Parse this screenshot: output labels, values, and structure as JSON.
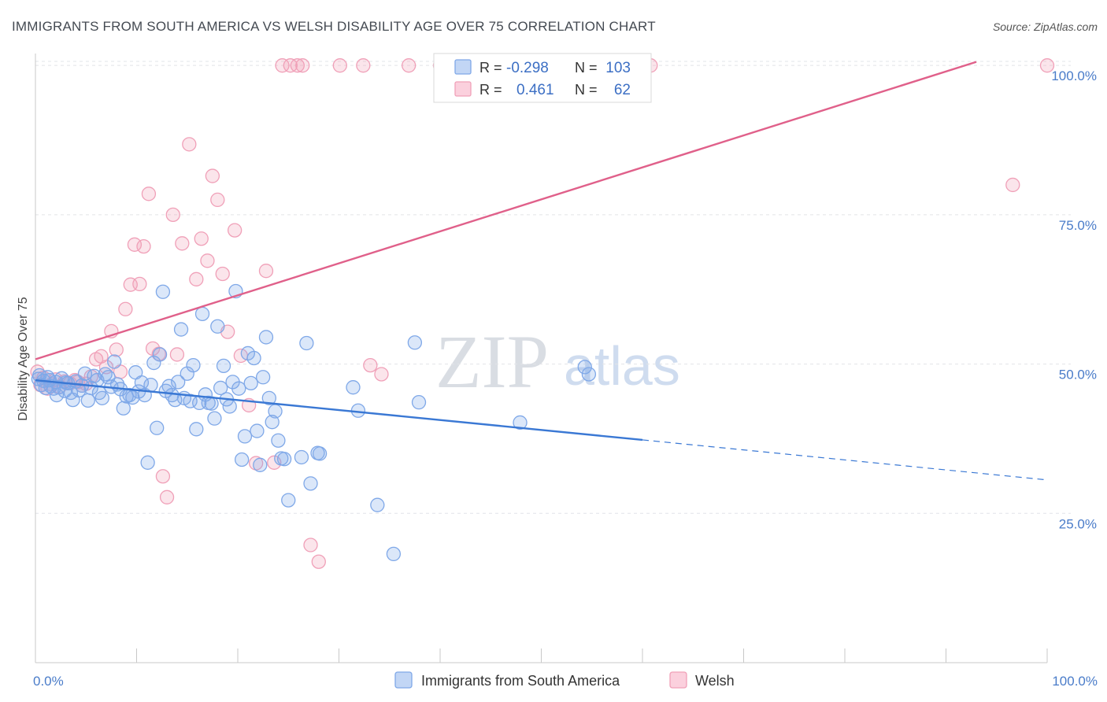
{
  "header": {
    "title": "IMMIGRANTS FROM SOUTH AMERICA VS WELSH DISABILITY AGE OVER 75 CORRELATION CHART",
    "source": "Source: ZipAtlas.com"
  },
  "watermark": {
    "zip": "ZIP",
    "atlas": "atlas"
  },
  "legend_box": {
    "rows": [
      {
        "r_label": "R =",
        "r_value": "-0.298",
        "n_label": "N =",
        "n_value": "103",
        "color": "#7fa8e8"
      },
      {
        "r_label": "R =",
        "r_value": "0.461",
        "n_label": "N =",
        "n_value": "62",
        "color": "#f0a0b8"
      }
    ]
  },
  "bottom_legend": {
    "items": [
      {
        "label": "Immigrants from South America",
        "color": "#7fa8e8"
      },
      {
        "label": "Welsh",
        "color": "#f0a0b8"
      }
    ]
  },
  "chart_data": {
    "type": "scatter",
    "title": "IMMIGRANTS FROM SOUTH AMERICA VS WELSH DISABILITY AGE OVER 75 CORRELATION CHART",
    "xlabel": "",
    "ylabel": "Disability Age Over 75",
    "xlim": [
      0,
      100
    ],
    "ylim": [
      0,
      102
    ],
    "x_tick_labels": [
      {
        "value": 0,
        "label": "0.0%"
      },
      {
        "value": 100,
        "label": "100.0%"
      }
    ],
    "y_tick_labels": [
      {
        "value": 25,
        "label": "25.0%"
      },
      {
        "value": 50,
        "label": "50.0%"
      },
      {
        "value": 75,
        "label": "75.0%"
      },
      {
        "value": 100,
        "label": "100.0%"
      }
    ],
    "grid": true,
    "legend_position": "top-center",
    "series": [
      {
        "name": "Immigrants from South America",
        "color": "#7fa8e8",
        "line_color": "#3a78d4",
        "trend": {
          "x0": 0,
          "y0": 47.3,
          "x1": 60,
          "y1": 37.3,
          "dashed_to_x": 100,
          "dashed_to_y": 30.6
        },
        "points": [
          [
            0.3,
            47.5
          ],
          [
            0.6,
            46.5
          ],
          [
            0.8,
            47.2
          ],
          [
            1.0,
            46.0
          ],
          [
            1.2,
            47.8
          ],
          [
            1.5,
            46.3
          ],
          [
            1.8,
            45.9
          ],
          [
            2.0,
            47.0
          ],
          [
            2.3,
            46.1
          ],
          [
            2.6,
            47.6
          ],
          [
            2.9,
            45.5
          ],
          [
            3.2,
            46.8
          ],
          [
            3.5,
            45.2
          ],
          [
            3.7,
            44.0
          ],
          [
            4.0,
            47.1
          ],
          [
            4.3,
            45.6
          ],
          [
            4.6,
            46.4
          ],
          [
            4.9,
            48.4
          ],
          [
            5.2,
            43.9
          ],
          [
            5.5,
            46.0
          ],
          [
            5.8,
            48.0
          ],
          [
            6.1,
            47.3
          ],
          [
            6.3,
            45.2
          ],
          [
            6.6,
            44.3
          ],
          [
            6.9,
            48.3
          ],
          [
            7.2,
            47.8
          ],
          [
            7.5,
            46.2
          ],
          [
            7.8,
            50.4
          ],
          [
            8.1,
            46.6
          ],
          [
            8.4,
            45.8
          ],
          [
            8.7,
            42.6
          ],
          [
            9.0,
            44.6
          ],
          [
            9.3,
            44.8
          ],
          [
            9.6,
            44.4
          ],
          [
            9.9,
            48.6
          ],
          [
            10.2,
            45.4
          ],
          [
            10.5,
            46.9
          ],
          [
            10.8,
            44.8
          ],
          [
            11.1,
            33.5
          ],
          [
            11.4,
            46.5
          ],
          [
            11.7,
            50.2
          ],
          [
            12.0,
            39.3
          ],
          [
            12.3,
            51.6
          ],
          [
            12.6,
            62.1
          ],
          [
            12.9,
            45.5
          ],
          [
            13.2,
            46.3
          ],
          [
            13.5,
            44.8
          ],
          [
            13.8,
            44.0
          ],
          [
            14.1,
            47.0
          ],
          [
            14.4,
            55.8
          ],
          [
            14.7,
            44.3
          ],
          [
            15.0,
            48.4
          ],
          [
            15.3,
            43.8
          ],
          [
            15.6,
            49.8
          ],
          [
            15.9,
            39.1
          ],
          [
            16.2,
            43.5
          ],
          [
            16.5,
            58.4
          ],
          [
            16.8,
            44.9
          ],
          [
            17.1,
            43.5
          ],
          [
            17.4,
            43.4
          ],
          [
            17.7,
            40.9
          ],
          [
            18.0,
            56.3
          ],
          [
            18.3,
            46.0
          ],
          [
            18.6,
            49.7
          ],
          [
            18.9,
            44.1
          ],
          [
            19.2,
            42.9
          ],
          [
            19.5,
            47.0
          ],
          [
            19.8,
            62.2
          ],
          [
            20.1,
            45.9
          ],
          [
            20.4,
            34.0
          ],
          [
            20.7,
            37.9
          ],
          [
            21.0,
            51.8
          ],
          [
            21.3,
            46.8
          ],
          [
            21.6,
            51.0
          ],
          [
            21.9,
            38.8
          ],
          [
            22.2,
            33.1
          ],
          [
            22.5,
            47.8
          ],
          [
            22.8,
            54.5
          ],
          [
            23.1,
            44.3
          ],
          [
            23.4,
            40.3
          ],
          [
            23.7,
            42.1
          ],
          [
            24.0,
            37.2
          ],
          [
            24.3,
            34.2
          ],
          [
            24.6,
            34.1
          ],
          [
            25.0,
            27.2
          ],
          [
            26.3,
            34.4
          ],
          [
            26.8,
            53.5
          ],
          [
            27.2,
            30.0
          ],
          [
            27.9,
            35.1
          ],
          [
            28.1,
            35.0
          ],
          [
            31.4,
            46.1
          ],
          [
            31.9,
            42.2
          ],
          [
            33.8,
            26.4
          ],
          [
            35.4,
            18.2
          ],
          [
            37.5,
            53.6
          ],
          [
            37.9,
            43.6
          ],
          [
            47.9,
            40.2
          ],
          [
            54.3,
            49.5
          ],
          [
            54.7,
            48.3
          ],
          [
            0.4,
            48.1
          ],
          [
            1.4,
            47.3
          ],
          [
            2.1,
            44.8
          ],
          [
            3.0,
            46.9
          ]
        ]
      },
      {
        "name": "Welsh",
        "color": "#f0a0b8",
        "line_color": "#e0608a",
        "trend": {
          "x0": 0,
          "y0": 50.8,
          "x1": 93,
          "y1": 100.6
        },
        "points": [
          [
            0.2,
            48.7
          ],
          [
            0.5,
            46.5
          ],
          [
            0.8,
            47.7
          ],
          [
            1.2,
            45.9
          ],
          [
            1.6,
            46.6
          ],
          [
            2.0,
            47.4
          ],
          [
            2.4,
            46.2
          ],
          [
            2.9,
            47.1
          ],
          [
            3.4,
            46.8
          ],
          [
            3.9,
            47.3
          ],
          [
            4.2,
            47.0
          ],
          [
            4.6,
            46.4
          ],
          [
            5.0,
            46.7
          ],
          [
            5.5,
            47.9
          ],
          [
            6.0,
            50.8
          ],
          [
            6.5,
            51.3
          ],
          [
            7.0,
            49.5
          ],
          [
            7.5,
            55.5
          ],
          [
            8.0,
            52.4
          ],
          [
            8.4,
            48.7
          ],
          [
            8.9,
            59.2
          ],
          [
            9.4,
            63.3
          ],
          [
            9.8,
            70.0
          ],
          [
            10.3,
            63.4
          ],
          [
            10.7,
            69.7
          ],
          [
            11.2,
            78.5
          ],
          [
            11.6,
            52.6
          ],
          [
            12.2,
            51.7
          ],
          [
            12.6,
            31.2
          ],
          [
            13.0,
            27.7
          ],
          [
            13.6,
            75.0
          ],
          [
            14.0,
            51.6
          ],
          [
            14.5,
            70.2
          ],
          [
            15.2,
            86.8
          ],
          [
            15.9,
            64.2
          ],
          [
            16.4,
            71.0
          ],
          [
            17.0,
            67.3
          ],
          [
            17.5,
            81.5
          ],
          [
            18.0,
            77.5
          ],
          [
            18.5,
            65.1
          ],
          [
            19.0,
            55.4
          ],
          [
            19.7,
            72.4
          ],
          [
            20.3,
            51.4
          ],
          [
            21.1,
            43.1
          ],
          [
            21.8,
            33.4
          ],
          [
            22.8,
            65.6
          ],
          [
            23.6,
            33.5
          ],
          [
            24.4,
            100
          ],
          [
            25.2,
            100
          ],
          [
            25.9,
            100
          ],
          [
            26.4,
            100
          ],
          [
            27.2,
            19.7
          ],
          [
            28.0,
            16.9
          ],
          [
            30.1,
            100
          ],
          [
            32.4,
            100
          ],
          [
            33.1,
            49.8
          ],
          [
            34.2,
            48.3
          ],
          [
            36.9,
            100
          ],
          [
            40.0,
            100
          ],
          [
            60.8,
            100
          ],
          [
            96.6,
            80.0
          ],
          [
            100,
            100
          ]
        ]
      }
    ]
  }
}
